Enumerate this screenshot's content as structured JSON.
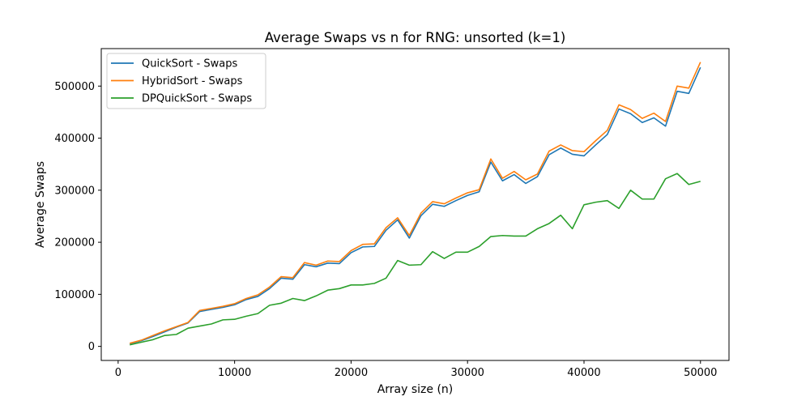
{
  "chart_data": {
    "type": "line",
    "title": "Average Swaps vs n for RNG: unsorted (k=1)",
    "xlabel": "Array size (n)",
    "ylabel": "Average Swaps",
    "xlim": [
      -1450,
      52450
    ],
    "ylim": [
      -27000,
      572000
    ],
    "xticks": [
      0,
      10000,
      20000,
      30000,
      40000,
      50000
    ],
    "yticks": [
      0,
      100000,
      200000,
      300000,
      400000,
      500000
    ],
    "grid": false,
    "legend_position": "top-left",
    "x": [
      1000,
      2000,
      3000,
      4000,
      5000,
      6000,
      7000,
      8000,
      9000,
      10000,
      11000,
      12000,
      13000,
      14000,
      15000,
      16000,
      17000,
      18000,
      19000,
      20000,
      21000,
      22000,
      23000,
      24000,
      25000,
      26000,
      27000,
      28000,
      29000,
      30000,
      31000,
      32000,
      33000,
      34000,
      35000,
      36000,
      37000,
      38000,
      39000,
      40000,
      41000,
      42000,
      43000,
      44000,
      45000,
      46000,
      47000,
      48000,
      49000,
      50000
    ],
    "series": [
      {
        "name": "QuickSort - Swaps",
        "color": "#1f77b4",
        "values": [
          5000,
          11000,
          19000,
          28000,
          37000,
          45000,
          67000,
          71000,
          75000,
          80000,
          90000,
          96000,
          111000,
          131000,
          129000,
          157000,
          153000,
          160000,
          159000,
          180000,
          191000,
          192000,
          223000,
          243000,
          208000,
          251000,
          273000,
          269000,
          280000,
          290000,
          297000,
          354000,
          318000,
          330000,
          313000,
          326000,
          368000,
          381000,
          369000,
          366000,
          387000,
          407000,
          456000,
          447000,
          430000,
          439000,
          423000,
          490000,
          486000,
          536000
        ]
      },
      {
        "name": "HybridSort - Swaps",
        "color": "#ff7f0e",
        "values": [
          6000,
          12000,
          21000,
          30000,
          38000,
          46000,
          69000,
          73000,
          77000,
          82000,
          92000,
          99000,
          114000,
          134000,
          132000,
          161000,
          156000,
          164000,
          163000,
          184000,
          196000,
          197000,
          228000,
          247000,
          213000,
          256000,
          278000,
          274000,
          285000,
          295000,
          301000,
          360000,
          323000,
          336000,
          320000,
          331000,
          375000,
          387000,
          376000,
          374000,
          395000,
          415000,
          464000,
          455000,
          438000,
          448000,
          432000,
          500000,
          496000,
          546000
        ]
      },
      {
        "name": "DPQuickSort - Swaps",
        "color": "#2ca02c",
        "values": [
          3000,
          8000,
          13000,
          21000,
          23000,
          35000,
          39000,
          43000,
          51000,
          52000,
          58000,
          63000,
          79000,
          83000,
          92000,
          88000,
          97000,
          108000,
          111000,
          118000,
          118000,
          121000,
          131000,
          165000,
          156000,
          157000,
          182000,
          169000,
          181000,
          181000,
          192000,
          211000,
          213000,
          212000,
          212000,
          226000,
          236000,
          252000,
          226000,
          272000,
          277000,
          280000,
          265000,
          300000,
          283000,
          283000,
          322000,
          332000,
          311000,
          317000
        ]
      }
    ]
  }
}
